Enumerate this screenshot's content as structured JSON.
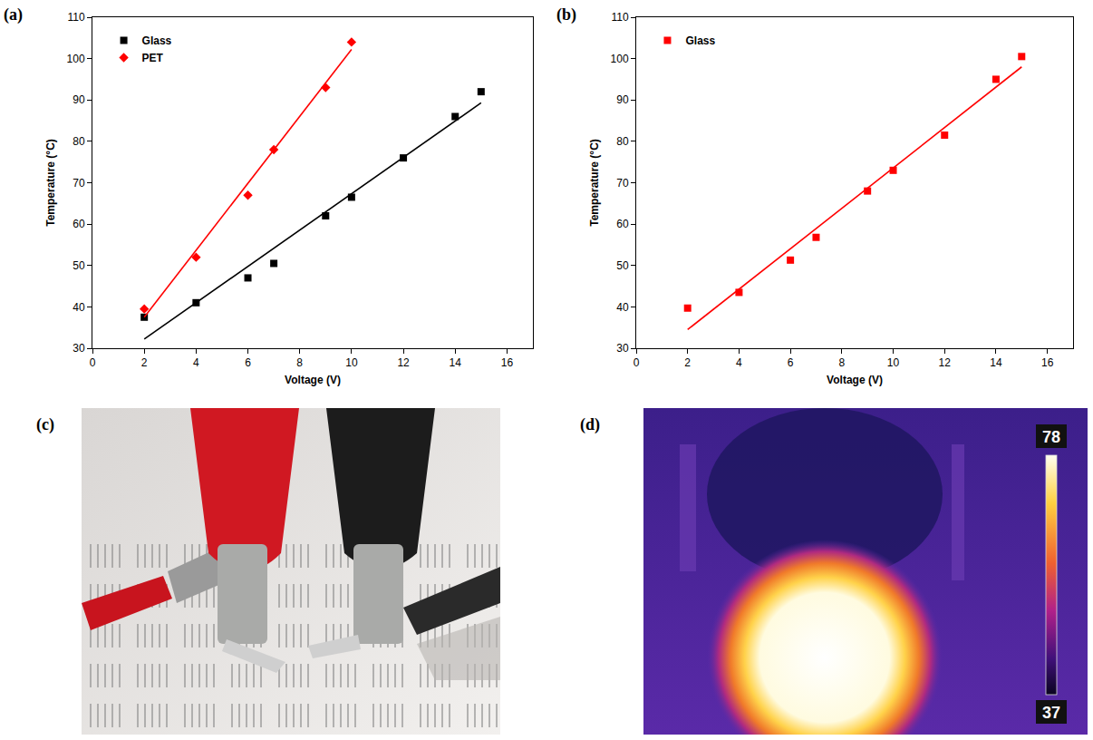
{
  "panel_labels": [
    "(a)",
    "(b)",
    "(c)",
    "(d)"
  ],
  "chart_data": [
    {
      "type": "scatter",
      "x_label": "Voltage (V)",
      "y_label": "Temperature (°C)",
      "xlim": [
        0,
        17
      ],
      "xticks": [
        0,
        2,
        4,
        6,
        8,
        10,
        12,
        14,
        16
      ],
      "ylim": [
        30,
        110
      ],
      "yticks": [
        30,
        40,
        50,
        60,
        70,
        80,
        90,
        100,
        110
      ],
      "grid": false,
      "legend": "upper left",
      "series": [
        {
          "name": "Glass",
          "type": "scatter",
          "color": "#000000",
          "marker": "square",
          "x": [
            2,
            4,
            6,
            7,
            9,
            10,
            12,
            14,
            15
          ],
          "values": [
            37.5,
            41,
            47,
            50.5,
            62,
            66.5,
            76,
            86,
            92
          ]
        },
        {
          "name": "PET",
          "type": "scatter",
          "color": "#ff0000",
          "marker": "diamond",
          "x": [
            2,
            4,
            6,
            7,
            9,
            10
          ],
          "values": [
            39.5,
            52,
            67,
            78,
            93,
            104
          ]
        },
        {
          "type": "line",
          "color": "#000000",
          "line_style": "solid",
          "x": [
            2,
            15
          ],
          "values": [
            32.2,
            89.3
          ]
        },
        {
          "type": "line",
          "color": "#ff0000",
          "line_style": "solid",
          "x": [
            2,
            10
          ],
          "values": [
            37.5,
            102.2
          ]
        }
      ]
    },
    {
      "type": "scatter",
      "x_label": "Voltage (V)",
      "y_label": "Temperature (°C)",
      "xlim": [
        0,
        17
      ],
      "xticks": [
        0,
        2,
        4,
        6,
        8,
        10,
        12,
        14,
        16
      ],
      "ylim": [
        30,
        110
      ],
      "yticks": [
        30,
        40,
        50,
        60,
        70,
        80,
        90,
        100,
        110
      ],
      "grid": false,
      "legend": "upper left",
      "series": [
        {
          "name": "Glass",
          "type": "scatter",
          "color": "#ff0000",
          "marker": "square",
          "x": [
            2,
            4,
            6,
            7,
            9,
            10,
            12,
            14,
            15
          ],
          "values": [
            39.7,
            43.5,
            51.3,
            56.8,
            68,
            73,
            81.5,
            95,
            100.5
          ]
        },
        {
          "type": "line",
          "color": "#ff0000",
          "line_style": "solid",
          "x": [
            2,
            15
          ],
          "values": [
            34.5,
            98
          ]
        }
      ]
    }
  ],
  "thermal_image": {
    "colorbar_range": [
      37,
      78
    ],
    "colorbar_ticks": [
      37,
      78
    ]
  }
}
